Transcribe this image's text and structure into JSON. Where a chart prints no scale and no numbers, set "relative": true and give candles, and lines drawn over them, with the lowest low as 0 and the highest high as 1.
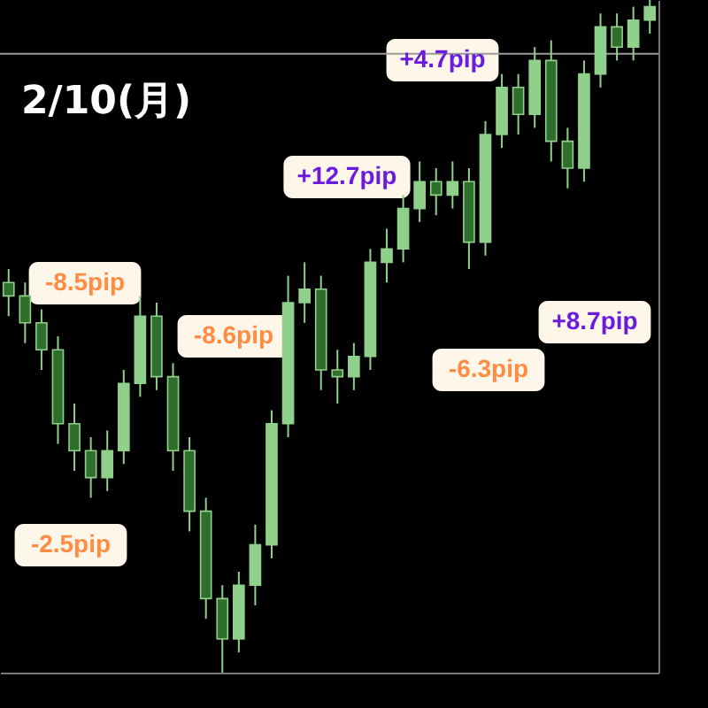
{
  "chart_data": {
    "type": "candlestick",
    "title": "2/10(月)",
    "relative": true,
    "grid": false,
    "color": "#8fd08a",
    "categories": [
      null,
      null,
      null,
      null,
      null,
      null,
      null,
      null,
      null,
      null,
      null,
      null,
      null,
      null,
      null,
      null,
      null,
      null,
      null,
      null,
      null,
      null,
      null,
      null,
      null,
      null,
      null,
      null,
      null,
      null,
      null,
      null,
      null,
      null,
      null,
      null,
      null,
      null,
      null,
      null
    ],
    "ohlc": [
      [
        0.58,
        0.6,
        0.53,
        0.56
      ],
      [
        0.56,
        0.58,
        0.49,
        0.52
      ],
      [
        0.52,
        0.54,
        0.45,
        0.48
      ],
      [
        0.48,
        0.5,
        0.34,
        0.37
      ],
      [
        0.37,
        0.4,
        0.3,
        0.33
      ],
      [
        0.33,
        0.35,
        0.26,
        0.29
      ],
      [
        0.29,
        0.36,
        0.27,
        0.33
      ],
      [
        0.33,
        0.45,
        0.31,
        0.43
      ],
      [
        0.43,
        0.56,
        0.41,
        0.53
      ],
      [
        0.53,
        0.55,
        0.42,
        0.44
      ],
      [
        0.44,
        0.46,
        0.3,
        0.33
      ],
      [
        0.33,
        0.35,
        0.21,
        0.24
      ],
      [
        0.24,
        0.26,
        0.08,
        0.11
      ],
      [
        0.11,
        0.13,
        0.0,
        0.05
      ],
      [
        0.05,
        0.15,
        0.03,
        0.13
      ],
      [
        0.13,
        0.22,
        0.1,
        0.19
      ],
      [
        0.19,
        0.39,
        0.17,
        0.37
      ],
      [
        0.37,
        0.59,
        0.35,
        0.55
      ],
      [
        0.55,
        0.61,
        0.52,
        0.57
      ],
      [
        0.57,
        0.59,
        0.42,
        0.45
      ],
      [
        0.45,
        0.48,
        0.4,
        0.44
      ],
      [
        0.44,
        0.49,
        0.42,
        0.47
      ],
      [
        0.47,
        0.63,
        0.45,
        0.61
      ],
      [
        0.61,
        0.66,
        0.58,
        0.63
      ],
      [
        0.63,
        0.71,
        0.61,
        0.69
      ],
      [
        0.69,
        0.76,
        0.67,
        0.73
      ],
      [
        0.73,
        0.75,
        0.68,
        0.71
      ],
      [
        0.71,
        0.76,
        0.69,
        0.73
      ],
      [
        0.73,
        0.75,
        0.6,
        0.64
      ],
      [
        0.64,
        0.82,
        0.62,
        0.8
      ],
      [
        0.8,
        0.89,
        0.78,
        0.87
      ],
      [
        0.87,
        0.89,
        0.8,
        0.83
      ],
      [
        0.83,
        0.93,
        0.81,
        0.91
      ],
      [
        0.91,
        0.94,
        0.76,
        0.79
      ],
      [
        0.79,
        0.81,
        0.72,
        0.75
      ],
      [
        0.75,
        0.91,
        0.73,
        0.89
      ],
      [
        0.89,
        0.98,
        0.87,
        0.96
      ],
      [
        0.96,
        0.98,
        0.91,
        0.93
      ],
      [
        0.93,
        0.99,
        0.91,
        0.97
      ],
      [
        0.97,
        1.0,
        0.95,
        0.99
      ]
    ],
    "ref_lines": [
      {
        "axis": "y",
        "value": 0.92,
        "color": "#9a9a9a"
      }
    ],
    "annotations": [
      "-2.5pip",
      "-8.5pip",
      "-8.6pip",
      "+12.7pip",
      "-6.3pip",
      "+4.7pip",
      "+8.7pip"
    ]
  }
}
